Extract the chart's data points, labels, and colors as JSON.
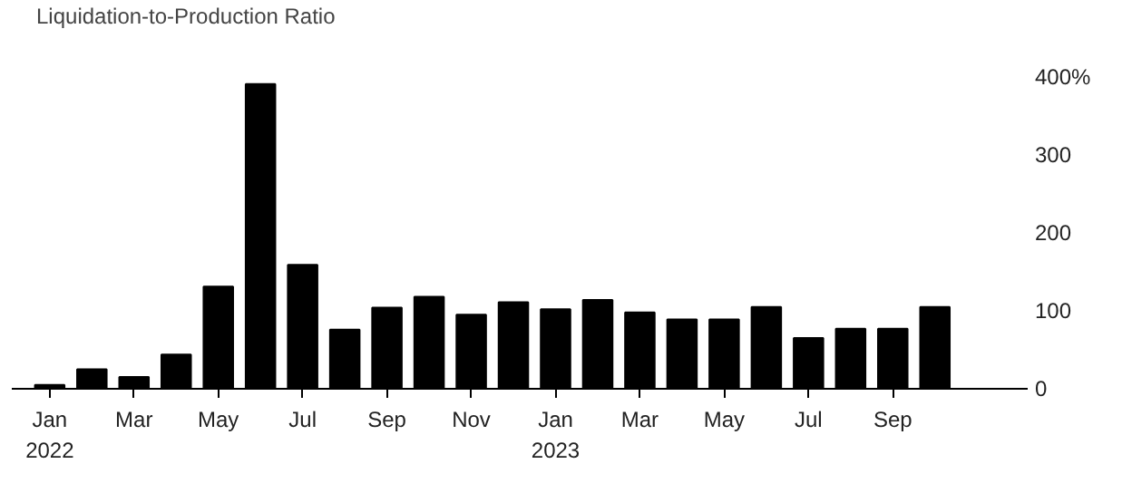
{
  "chart_data": {
    "type": "bar",
    "categories": [
      "Jan\n2022",
      null,
      "Mar",
      null,
      "May",
      null,
      "Jul",
      null,
      "Sep",
      null,
      "Nov",
      null,
      "Jan\n2023",
      null,
      "Mar",
      null,
      "May",
      null,
      "Jul",
      null,
      "Sep",
      null
    ],
    "series": [
      {
        "name": "Liquidation-to-Production Ratio",
        "color": "#000000",
        "values": [
          5,
          25,
          15,
          44,
          131,
          391,
          159,
          76,
          104,
          118,
          95,
          111,
          102,
          114,
          98,
          89,
          89,
          105,
          65,
          77,
          77,
          105
        ]
      }
    ],
    "ylim": [
      0,
      400
    ],
    "yticks": [
      0,
      100,
      200,
      300,
      {
        "value": 400,
        "label": "400%"
      }
    ],
    "grid": false,
    "legend": "top left"
  }
}
